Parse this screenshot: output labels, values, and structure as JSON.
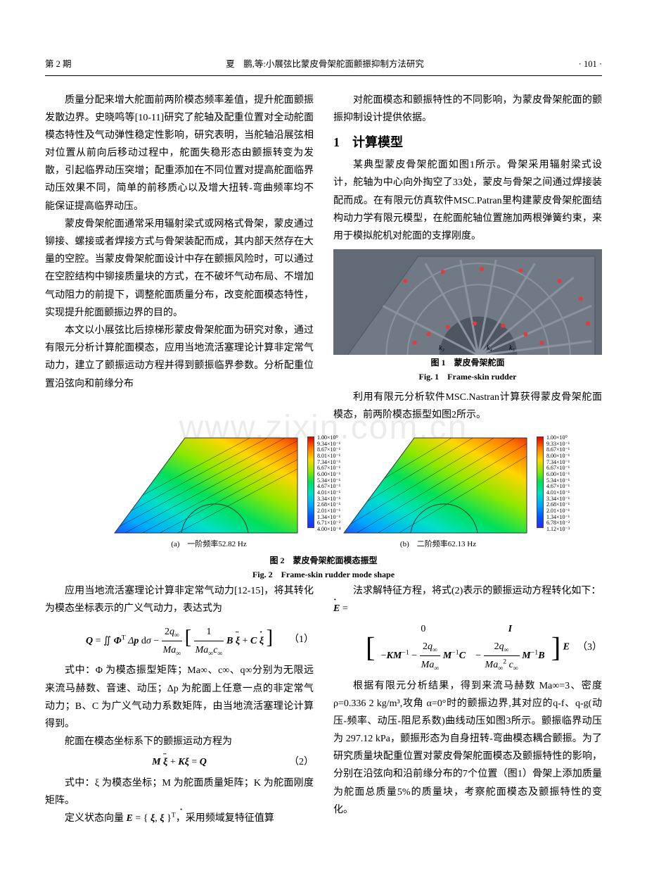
{
  "header": {
    "left": "第 2 期",
    "center": "夏　鹏,等:小展弦比蒙皮骨架舵面颤振抑制方法研究",
    "right": "· 101 ·"
  },
  "col": {
    "p1": "质量分配来增大舵面前两阶模态频率差值，提升舵面颤振发散边界。史晓鸣等[10-11]研究了舵轴及配重位置对全动舵面模态特性及气动弹性稳定性影响，研究表明，当舵轴沿展弦相对位置从前向后移动过程中，舵面失稳形态由颤振转变为发散，引起临界动压突增；配重添加在不同位置对提高舵面临界动压效果不同，简单的前移质心以及增大扭转-弯曲频率均不能保证提高临界动压。",
    "p2": "蒙皮骨架舵面通常采用辐射梁式或网格式骨架，蒙皮通过铆接、螺接或者焊接方式与骨架装配而成，其内部天然存在大量的空腔。当蒙皮骨架舵面设计中存在颤振风险时，可以通过在空腔结构中铆接质量块的方式，在不破坏气动布局、不增加气动阻力的前提下，调整舵面质量分布，改变舵面模态特性，实现提升舵面颤振边界的目的。",
    "p3": "本文以小展弦比后掠梯形蒙皮骨架舵面为研究对象，通过有限元分析计算舵面模态，应用当地流活塞理论计算非定常气动力，建立了颤振运动方程并得到颤振临界参数。分析配重位置沿弦向和前缘分布",
    "p4": "对舵面模态和颤振特性的不同影响，为蒙皮骨架舵面的颤振抑制设计提供依据。",
    "sec1": "1　计算模型",
    "p5": "某典型蒙皮骨架舵面如图1所示。骨架采用辐射梁式设计，舵轴为中心向外掏空了33处，蒙皮与骨架之间通过焊接装配而成。在有限元仿真软件MSC.Patran里构建蒙皮骨架舵面结构动力学有限元模型，在舵面舵轴位置施加两根弹簧约束，来用于模拟舵机对舵面的支撑刚度。",
    "p6": "利用有限元分析软件MSC.Nastran计算获得蒙皮骨架舵面模态，前两阶模态振型如图2所示。"
  },
  "fig1": {
    "cap_cn": "图 1　蒙皮骨架舵面",
    "cap_en": "Fig. 1　Frame-skin rudder",
    "labels": {
      "k3": "k₃",
      "k4": "k₄",
      "k5": "k₅"
    },
    "colors": {
      "bg": "#626a76",
      "skin": "#717985",
      "rib": "#7e8792",
      "cut": "#4e5661",
      "dot": "#e33b3b"
    }
  },
  "fig2": {
    "cap_cn": "图 2　蒙皮骨架舵面模态振型",
    "cap_en": "Fig. 2　Frame-skin rudder mode shape",
    "a_label": "(a)　一阶频率52.82 Hz",
    "b_label": "(b)　二阶频率62.13 Hz",
    "colorbar": [
      "#e00000",
      "#ff5a00",
      "#ff9b00",
      "#ffd600",
      "#b9ea00",
      "#5fe800",
      "#00e05a",
      "#00e0c8",
      "#00a8ff",
      "#2a2aff"
    ],
    "legend_vals": [
      "1.00×10⁰",
      "9.34×10⁻¹",
      "8.67×10⁻¹",
      "8.01×10⁻¹",
      "7.34×10⁻¹",
      "6.67×10⁻¹",
      "6.00×10⁻¹",
      "5.34×10⁻¹",
      "4.67×10⁻¹",
      "4.01×10⁻¹",
      "3.34×10⁻¹",
      "2.68×10⁻¹",
      "2.01×10⁻¹",
      "1.34×10⁻¹",
      "6.71×10⁻²",
      "4.00×10⁻⁴"
    ],
    "legend_vals_b": [
      "1.00×10⁰",
      "9.33×10⁻¹",
      "8.67×10⁻¹",
      "8.00×10⁻¹",
      "7.34×10⁻¹",
      "6.67×10⁻¹",
      "6.00×10⁻¹",
      "5.34×10⁻¹",
      "4.67×10⁻¹",
      "4.01×10⁻¹",
      "3.34×10⁻¹",
      "2.68×10⁻¹",
      "2.01×10⁻¹",
      "1.34×10⁻¹",
      "6.78×10⁻²",
      "1.12×10⁻³"
    ]
  },
  "bottom": {
    "p7": "应用当地流活塞理论计算非定常气动力[12-15]，将其转化为模态坐标表示的广义气动力，表达式为",
    "p8": "式中：Φ 为模态振型矩阵；Ma∞、c∞、q∞分别为无限远来流马赫数、音速、动压；Δp 为舵面上任意一点的非定常气动力；B、C 为广义气动力系数矩阵，由当地流活塞理论计算得到。",
    "p9": "舵面在模态坐标系下的颤振运动方程为",
    "p10": "式中：ξ 为模态坐标；M 为舵面质量矩阵；K 为舵面刚度矩阵。",
    "p11a": "定义状态向量 ",
    "p11b": "，采用频域复特征值算",
    "p12": "法求解特征方程，将式(2)表示的颤振运动方程转化如下：",
    "p13": "根据有限元分析结果，得到来流马赫数 Ma∞=3、密度 ρ=0.336 2 kg/m³,攻角 α=0°时的颤振边界,其对应的q-f、q-g(动压-频率、动压-阻尼系数)曲线动压如图3所示。颤振临界动压为 297.12 kPa，颤振形态为自身扭转-弯曲模态耦合颤振。为了研究质量块配重位置对蒙皮骨架舵面模态及颤振特性的影响，分别在沿弦向和沿前缘分布的7个位置（图1）骨架上添加质量为舵面总质量5%的质量块，考察舵面模态及颤振特性的变化。"
  },
  "eq": {
    "n1": "（1）",
    "n2": "（2）",
    "n3": "（3）"
  },
  "watermark": "www.zixin.com.cn"
}
